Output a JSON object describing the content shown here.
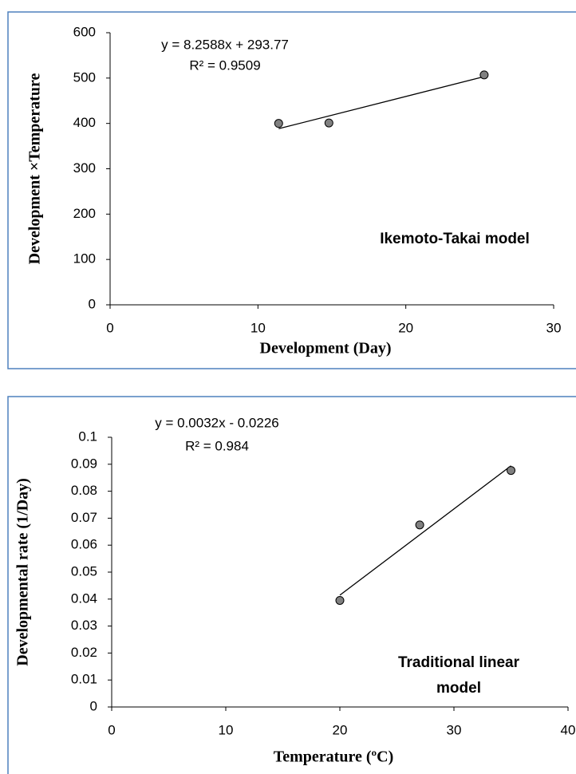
{
  "chart_data": [
    {
      "type": "scatter",
      "x_label": "Development (Day)",
      "y_label": "Development ×Temperature",
      "equation": "y = 8.2588x + 293.77",
      "r_squared": "R² = 0.9509",
      "annotation": [
        "Ikemoto-Takai model"
      ],
      "x": [
        11.4,
        14.8,
        25.3
      ],
      "values": [
        400,
        401,
        507
      ],
      "color": "#808080",
      "trendline": true,
      "xlim": [
        0,
        30
      ],
      "xticks": [
        0,
        10,
        20,
        30
      ],
      "ylim": [
        0,
        600
      ],
      "yticks": [
        0,
        100,
        200,
        300,
        400,
        500,
        600
      ],
      "grid": false
    },
    {
      "type": "scatter",
      "x_label": "Temperature (ºC)",
      "y_label": "Developmental rate  (1/Day)",
      "equation": "y = 0.0032x - 0.0226",
      "r_squared": "R² = 0.984",
      "annotation": [
        "Traditional linear",
        "model"
      ],
      "x": [
        20,
        27,
        35
      ],
      "values": [
        0.0395,
        0.0675,
        0.0877
      ],
      "color": "#808080",
      "trendline": true,
      "xlim": [
        0,
        40
      ],
      "xticks": [
        0,
        10,
        20,
        30,
        40
      ],
      "ylim": [
        0,
        0.1
      ],
      "yticks": [
        0,
        0.01,
        0.02,
        0.03,
        0.04,
        0.05,
        0.06,
        0.07,
        0.08,
        0.09,
        0.1
      ],
      "grid": false
    }
  ]
}
